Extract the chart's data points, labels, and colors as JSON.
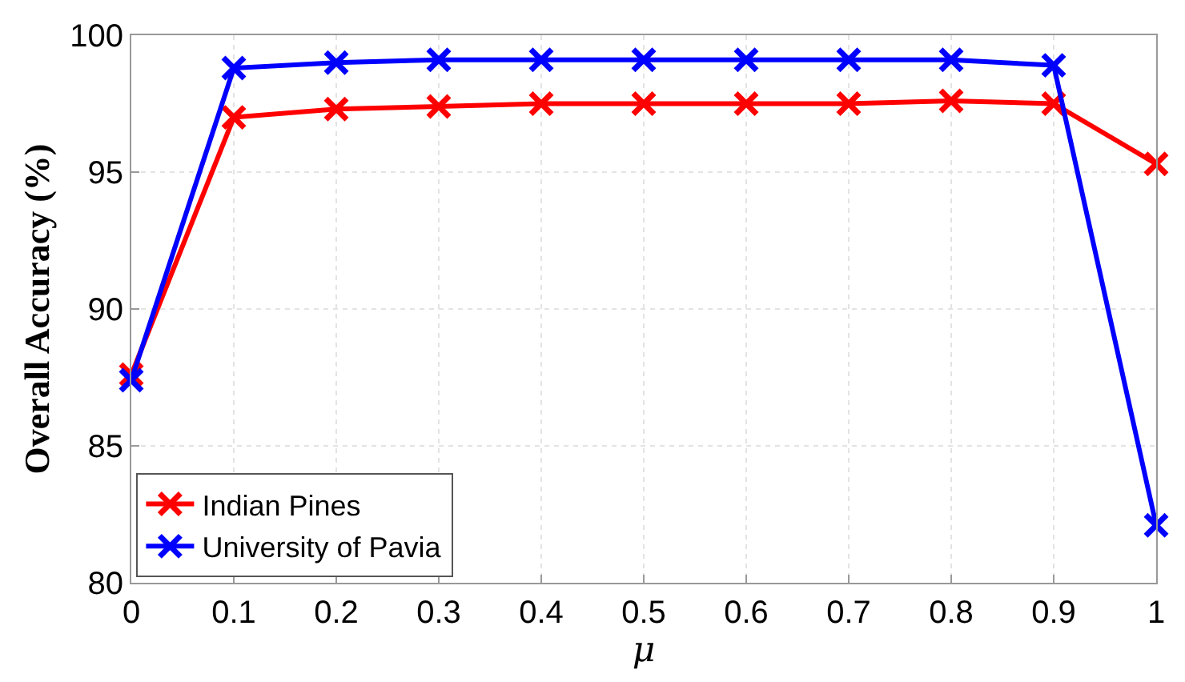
{
  "chart_data": {
    "type": "line",
    "xlabel": "μ",
    "ylabel": "Overall Accuracy (%)",
    "x": [
      0,
      0.1,
      0.2,
      0.3,
      0.4,
      0.5,
      0.6,
      0.7,
      0.8,
      0.9,
      1
    ],
    "series": [
      {
        "name": "Indian Pines",
        "color": "#ff0000",
        "values": [
          87.6,
          97.0,
          97.3,
          97.4,
          97.5,
          97.5,
          97.5,
          97.5,
          97.6,
          97.5,
          95.3
        ]
      },
      {
        "name": "University of Pavia",
        "color": "#0000ff",
        "values": [
          87.4,
          98.8,
          99.0,
          99.1,
          99.1,
          99.1,
          99.1,
          99.1,
          99.1,
          98.9,
          82.1
        ]
      }
    ],
    "xlim": [
      0,
      1
    ],
    "xticks": [
      0,
      0.1,
      0.2,
      0.3,
      0.4,
      0.5,
      0.6,
      0.7,
      0.8,
      0.9,
      1
    ],
    "ylim": [
      80,
      100
    ],
    "yticks": [
      80,
      85,
      90,
      95,
      100
    ],
    "grid": true,
    "legend": "bottom left",
    "marker": "cross",
    "line_style": "solid"
  }
}
